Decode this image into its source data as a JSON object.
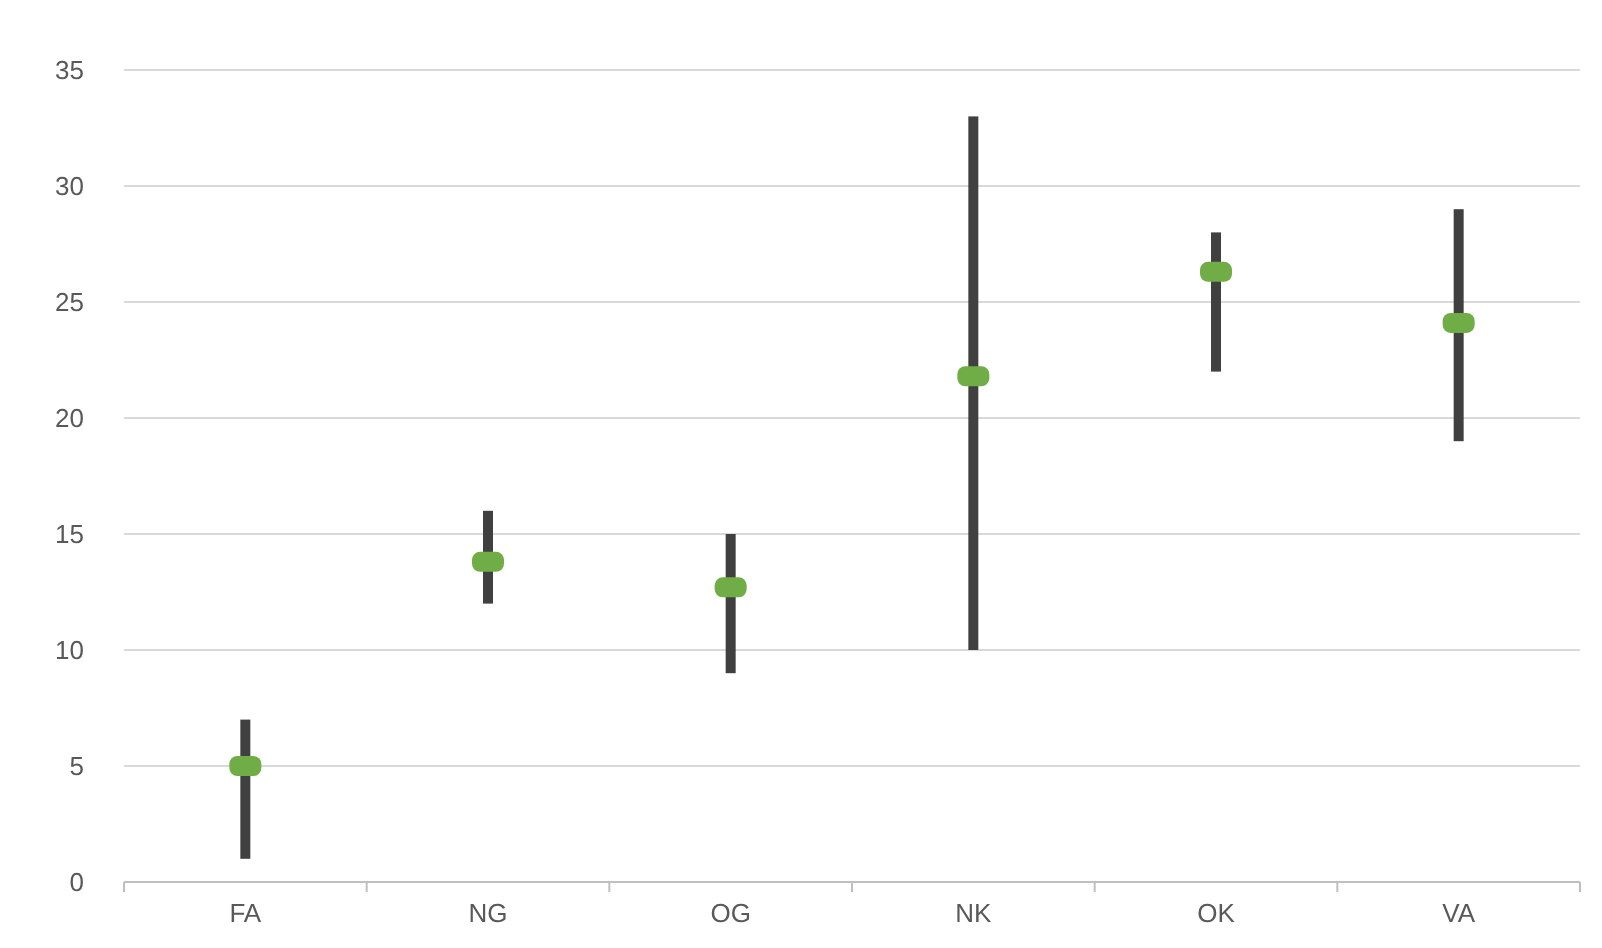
{
  "chart_data": {
    "type": "bar",
    "categories": [
      "FA",
      "NG",
      "OG",
      "NK",
      "OK",
      "VA"
    ],
    "series": [
      {
        "color": "#404040",
        "base": [
          1,
          12,
          9,
          10,
          22,
          19
        ],
        "values": [
          6,
          4,
          6,
          23,
          6,
          10
        ]
      },
      {
        "type": "scatter",
        "color": "#70ad47",
        "marker": "square",
        "values": [
          5,
          13.8,
          12.7,
          21.8,
          26.3,
          24.1
        ]
      }
    ],
    "ylim": [
      0,
      35
    ],
    "yticks": [
      0,
      5,
      10,
      15,
      20,
      25,
      30,
      35
    ],
    "grid": "y"
  }
}
